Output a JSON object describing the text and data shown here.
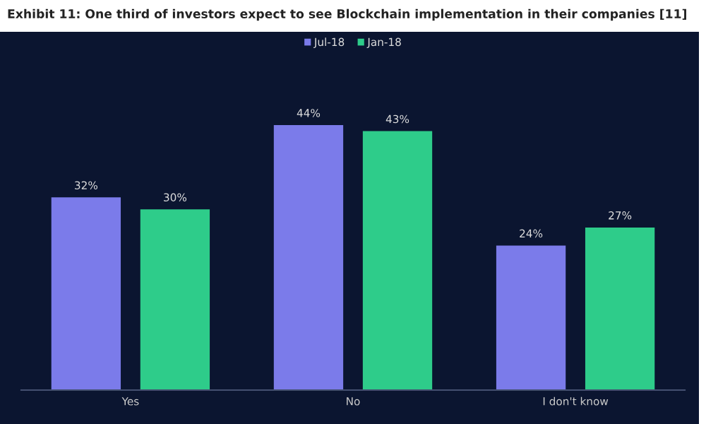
{
  "chart_data": {
    "type": "bar",
    "title": "Exhibit 11: One third of investors expect to see Blockchain implementation in their companies [11]",
    "categories": [
      "Yes",
      "No",
      "I don't know"
    ],
    "series": [
      {
        "name": "Jul-18",
        "color": "#7b7bea",
        "values": [
          32,
          44,
          24
        ],
        "value_labels": [
          "32%",
          "44%",
          "24%"
        ]
      },
      {
        "name": "Jan-18",
        "color": "#2ecc8a",
        "values": [
          30,
          43,
          27
        ],
        "value_labels": [
          "30%",
          "43%",
          "27%"
        ]
      }
    ],
    "legend": "top",
    "grid": false
  }
}
